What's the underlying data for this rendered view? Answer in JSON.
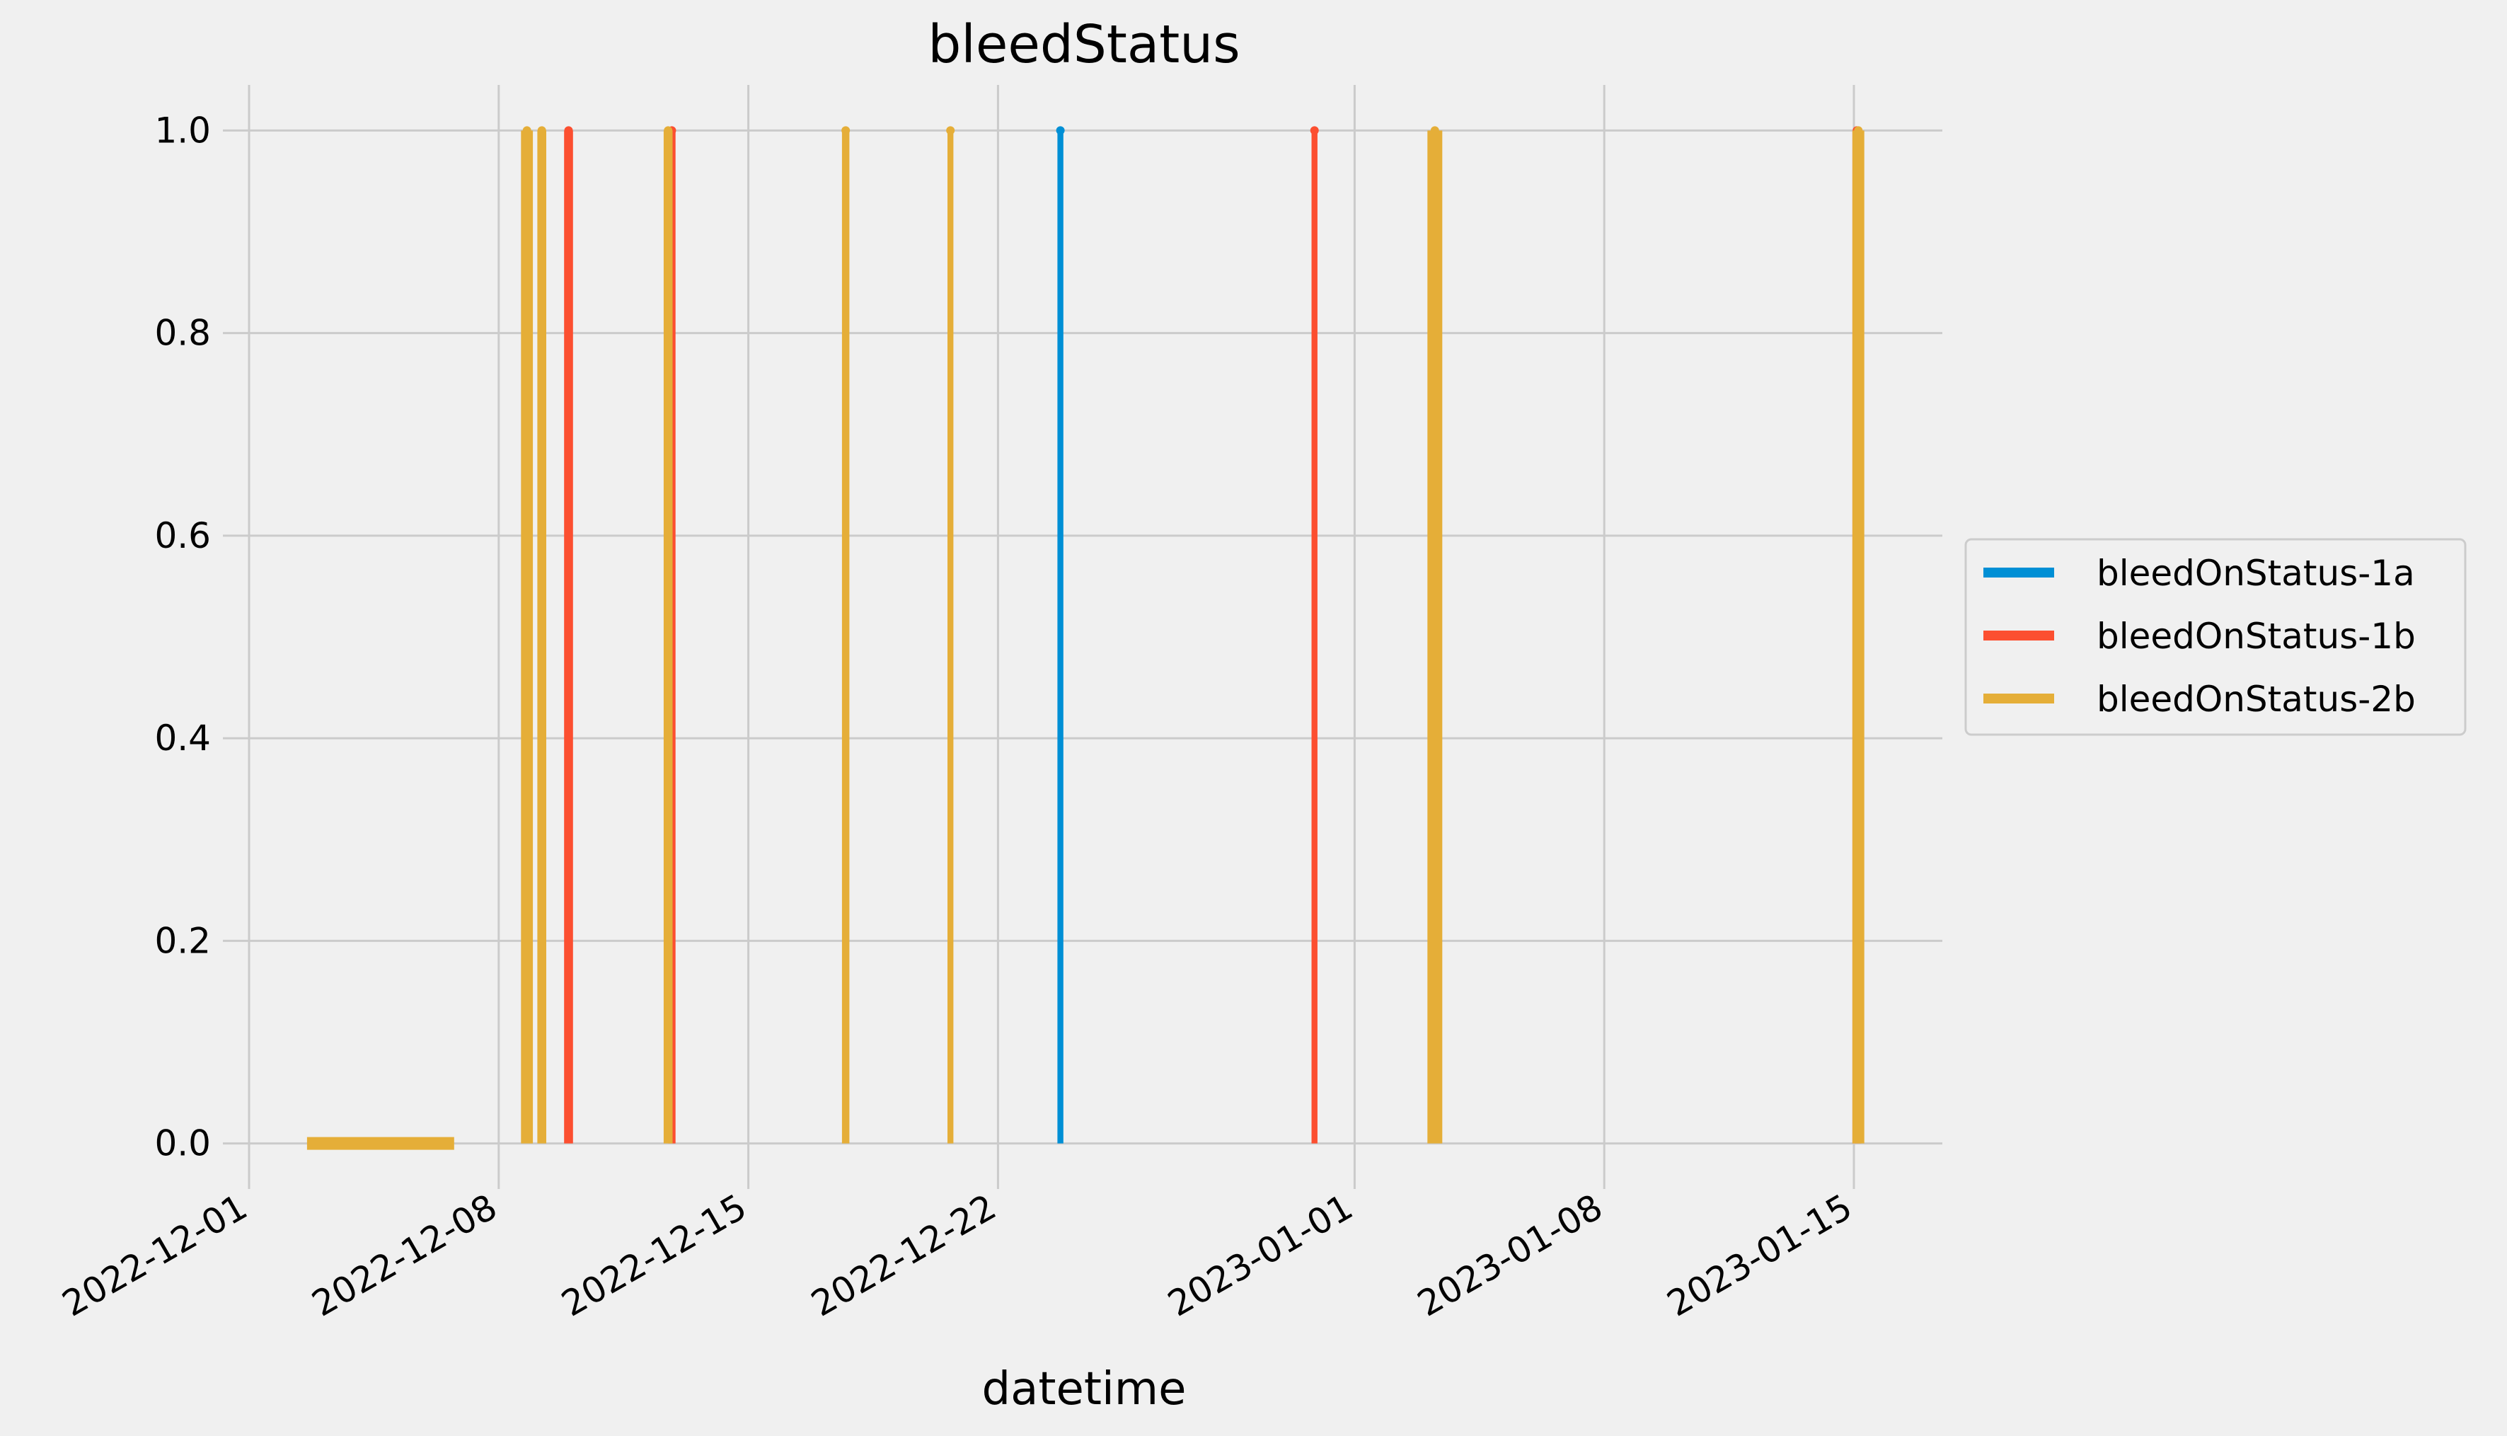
{
  "chart_data": {
    "type": "line",
    "title": "bleedStatus",
    "xlabel": "datetime",
    "ylabel": "",
    "xlim": [
      "2022-12-01",
      "2023-01-16"
    ],
    "ylim": [
      -0.045,
      1.045
    ],
    "grid": true,
    "legend_position": "right",
    "x_ticks": [
      "2022-12-01",
      "2022-12-08",
      "2022-12-15",
      "2022-12-22",
      "2023-01-01",
      "2023-01-08",
      "2023-01-15"
    ],
    "y_ticks": [
      "0.0",
      "0.2",
      "0.4",
      "0.6",
      "0.8",
      "1.0"
    ],
    "series": [
      {
        "name": "bleedOnStatus-1a",
        "color": "#008fd5",
        "pulses": [
          {
            "start": "2022-12-23 16:00",
            "end": "2022-12-23 20:00"
          }
        ]
      },
      {
        "name": "bleedOnStatus-1b",
        "color": "#fc4f30",
        "pulses": [
          {
            "start": "2022-12-09 20:00",
            "end": "2022-12-10 02:00"
          },
          {
            "start": "2022-12-12 18:00",
            "end": "2022-12-12 23:00"
          },
          {
            "start": "2022-12-30 19:00",
            "end": "2022-12-30 23:00"
          },
          {
            "start": "2023-01-14 23:00",
            "end": "2023-01-15 05:00"
          }
        ]
      },
      {
        "name": "bleedOnStatus-2b",
        "color": "#e5ae38",
        "baseline": {
          "start": "2022-12-02 15:00",
          "end": "2022-12-06 18:00"
        },
        "pulses": [
          {
            "start": "2022-12-08 15:00",
            "end": "2022-12-08 23:00"
          },
          {
            "start": "2022-12-09 02:00",
            "end": "2022-12-09 08:00"
          },
          {
            "start": "2022-12-12 15:00",
            "end": "2022-12-12 21:00"
          },
          {
            "start": "2022-12-17 15:00",
            "end": "2022-12-17 20:00"
          },
          {
            "start": "2022-12-20 14:00",
            "end": "2022-12-20 18:00"
          },
          {
            "start": "2023-01-03 01:00",
            "end": "2023-01-03 11:00"
          },
          {
            "start": "2023-01-14 23:00",
            "end": "2023-01-15 07:00"
          }
        ]
      }
    ]
  }
}
